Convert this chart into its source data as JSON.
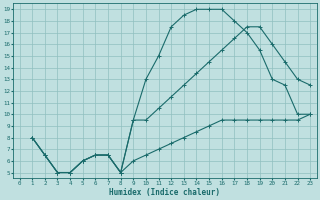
{
  "xlabel": "Humidex (Indice chaleur)",
  "bg_color": "#c0e0e0",
  "grid_color": "#90c0c0",
  "line_color": "#1a6b6b",
  "xlim": [
    -0.5,
    23.5
  ],
  "ylim": [
    4.5,
    19.5
  ],
  "xticks": [
    0,
    1,
    2,
    3,
    4,
    5,
    6,
    7,
    8,
    9,
    10,
    11,
    12,
    13,
    14,
    15,
    16,
    17,
    18,
    19,
    20,
    21,
    22,
    23
  ],
  "yticks": [
    5,
    6,
    7,
    8,
    9,
    10,
    11,
    12,
    13,
    14,
    15,
    16,
    17,
    18,
    19
  ],
  "line1_x": [
    1,
    2,
    3,
    4,
    5,
    6,
    7,
    8,
    9,
    10,
    11,
    12,
    13,
    14,
    15,
    16,
    17,
    18,
    19,
    20,
    21,
    22,
    23
  ],
  "line1_y": [
    8.0,
    6.5,
    5.0,
    5.0,
    6.0,
    6.5,
    6.5,
    5.0,
    9.5,
    13.0,
    15.0,
    17.5,
    18.5,
    19.0,
    19.0,
    19.0,
    18.0,
    17.0,
    15.5,
    13.0,
    12.5,
    10.0,
    10.0
  ],
  "line2_x": [
    1,
    2,
    3,
    4,
    5,
    6,
    7,
    8,
    9,
    10,
    11,
    12,
    13,
    14,
    15,
    16,
    17,
    18,
    19,
    20,
    21,
    22,
    23
  ],
  "line2_y": [
    8.0,
    6.5,
    5.0,
    5.0,
    6.0,
    6.5,
    6.5,
    5.0,
    9.5,
    9.5,
    10.5,
    11.5,
    12.5,
    13.5,
    14.5,
    15.5,
    16.5,
    17.5,
    17.5,
    16.0,
    14.5,
    13.0,
    12.5
  ],
  "line3_x": [
    1,
    2,
    3,
    4,
    5,
    6,
    7,
    8,
    9,
    10,
    11,
    12,
    13,
    14,
    15,
    16,
    17,
    18,
    19,
    20,
    21,
    22,
    23
  ],
  "line3_y": [
    8.0,
    6.5,
    5.0,
    5.0,
    6.0,
    6.5,
    6.5,
    5.0,
    6.0,
    6.5,
    7.0,
    7.5,
    8.0,
    8.5,
    9.0,
    9.5,
    9.5,
    9.5,
    9.5,
    9.5,
    9.5,
    9.5,
    10.0
  ]
}
